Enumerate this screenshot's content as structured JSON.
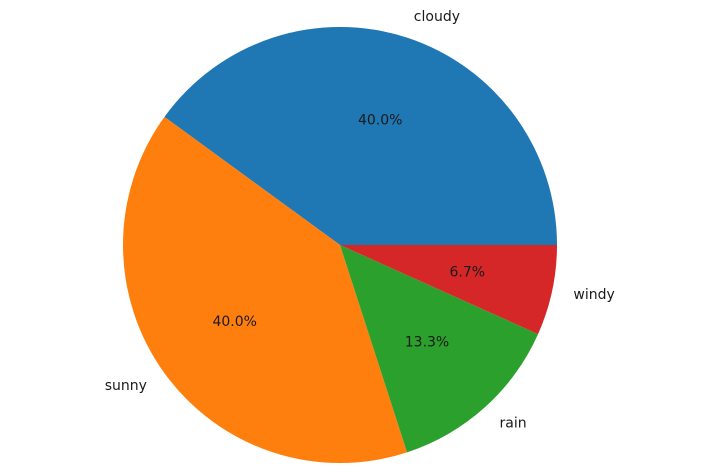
{
  "chart_data": {
    "type": "pie",
    "title": "",
    "start_angle_deg": 0,
    "direction": "counterclockwise",
    "slices": [
      {
        "label": "cloudy",
        "value": 40.0,
        "pct_text": "40.0%",
        "color": "#1f77b4"
      },
      {
        "label": "sunny",
        "value": 40.0,
        "pct_text": "40.0%",
        "color": "#ff7f0e"
      },
      {
        "label": "rain",
        "value": 13.3,
        "pct_text": "13.3%",
        "color": "#2ca02c"
      },
      {
        "label": "windy",
        "value": 6.7,
        "pct_text": "6.7%",
        "color": "#d62728"
      }
    ],
    "legend": "none"
  }
}
